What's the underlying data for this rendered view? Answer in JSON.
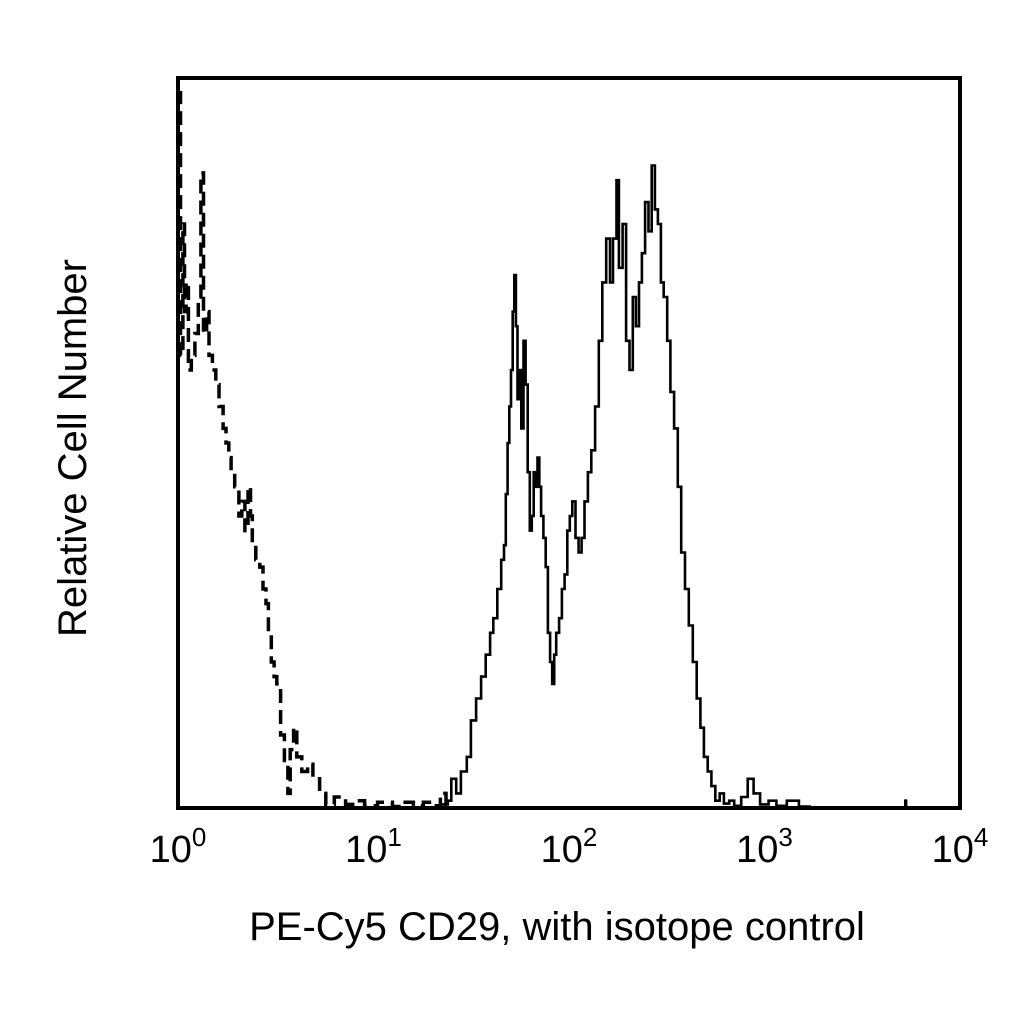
{
  "chart_data": {
    "type": "line",
    "xlabel": "PE-Cy5 CD29, with isotope control",
    "ylabel": "Relative Cell Number",
    "x_scale": "log",
    "xlim": [
      1,
      10000
    ],
    "ylim": [
      0,
      100
    ],
    "grid": false,
    "x_ticks": [
      {
        "base": "10",
        "exp": "0"
      },
      {
        "base": "10",
        "exp": "1"
      },
      {
        "base": "10",
        "exp": "2"
      },
      {
        "base": "10",
        "exp": "3"
      },
      {
        "base": "10",
        "exp": "4"
      }
    ],
    "series": [
      {
        "style": "dashed",
        "color": "#000000",
        "points": [
          [
            1.0,
            98
          ],
          [
            1.03,
            62
          ],
          [
            1.06,
            80
          ],
          [
            1.08,
            68
          ],
          [
            1.1,
            72
          ],
          [
            1.13,
            60
          ],
          [
            1.17,
            62
          ],
          [
            1.22,
            65
          ],
          [
            1.27,
            70
          ],
          [
            1.31,
            87
          ],
          [
            1.35,
            65
          ],
          [
            1.4,
            68
          ],
          [
            1.44,
            62
          ],
          [
            1.5,
            60
          ],
          [
            1.56,
            58
          ],
          [
            1.62,
            55
          ],
          [
            1.7,
            52
          ],
          [
            1.76,
            50
          ],
          [
            1.82,
            48
          ],
          [
            1.87,
            46
          ],
          [
            1.95,
            44
          ],
          [
            2.05,
            40
          ],
          [
            2.12,
            42
          ],
          [
            2.2,
            38
          ],
          [
            2.28,
            44
          ],
          [
            2.35,
            40
          ],
          [
            2.4,
            36
          ],
          [
            2.5,
            34
          ],
          [
            2.62,
            33
          ],
          [
            2.72,
            30
          ],
          [
            2.82,
            28
          ],
          [
            2.9,
            24
          ],
          [
            3.0,
            20
          ],
          [
            3.1,
            18
          ],
          [
            3.2,
            17
          ],
          [
            3.35,
            10
          ],
          [
            3.5,
            6
          ],
          [
            3.65,
            2
          ],
          [
            3.75,
            8
          ],
          [
            3.9,
            11
          ],
          [
            4.05,
            7
          ],
          [
            4.3,
            5
          ],
          [
            4.6,
            6
          ],
          [
            4.9,
            4
          ],
          [
            5.3,
            2
          ],
          [
            5.7,
            0.5
          ],
          [
            6.3,
            1.5
          ],
          [
            7.2,
            0.5
          ],
          [
            8.0,
            1
          ],
          [
            9.0,
            0.3
          ],
          [
            10.5,
            0.8
          ],
          [
            12.5,
            0.2
          ],
          [
            14.0,
            0.8
          ],
          [
            16.0,
            0.3
          ],
          [
            18.0,
            0.8
          ],
          [
            20.0,
            0.3
          ],
          [
            22.0,
            2
          ],
          [
            23.5,
            0.5
          ],
          [
            24.5,
            0.2
          ]
        ]
      },
      {
        "style": "solid",
        "color": "#000000",
        "points": [
          [
            22.0,
            0.5
          ],
          [
            24.0,
            1
          ],
          [
            25.0,
            4
          ],
          [
            26.5,
            2
          ],
          [
            28.0,
            5
          ],
          [
            30.0,
            7
          ],
          [
            31.5,
            12
          ],
          [
            33.5,
            15
          ],
          [
            35.5,
            18
          ],
          [
            37.5,
            21
          ],
          [
            39.5,
            24
          ],
          [
            41.0,
            26
          ],
          [
            43.0,
            30
          ],
          [
            45.0,
            34
          ],
          [
            46.5,
            36
          ],
          [
            47.5,
            43
          ],
          [
            48.5,
            50
          ],
          [
            49.5,
            55
          ],
          [
            50.5,
            60
          ],
          [
            51.5,
            68
          ],
          [
            52.5,
            73
          ],
          [
            53.5,
            66
          ],
          [
            54.5,
            56
          ],
          [
            55.5,
            60
          ],
          [
            57.0,
            52
          ],
          [
            58.5,
            64
          ],
          [
            60.0,
            58
          ],
          [
            61.5,
            46
          ],
          [
            63.0,
            38
          ],
          [
            64.5,
            40
          ],
          [
            66.0,
            46
          ],
          [
            67.5,
            44
          ],
          [
            69.0,
            48
          ],
          [
            70.5,
            44
          ],
          [
            72.0,
            40
          ],
          [
            74.0,
            37
          ],
          [
            76.0,
            33
          ],
          [
            78.0,
            24
          ],
          [
            80.0,
            20
          ],
          [
            82.0,
            17
          ],
          [
            84.0,
            21
          ],
          [
            86.0,
            24
          ],
          [
            89.0,
            26
          ],
          [
            92.0,
            30
          ],
          [
            95.0,
            32
          ],
          [
            98.0,
            38
          ],
          [
            101.0,
            40
          ],
          [
            104.0,
            42
          ],
          [
            108.0,
            37
          ],
          [
            112.0,
            35
          ],
          [
            116.0,
            37
          ],
          [
            120.0,
            42
          ],
          [
            125.0,
            46
          ],
          [
            130.0,
            49
          ],
          [
            136.0,
            55
          ],
          [
            142.0,
            64
          ],
          [
            148.0,
            72
          ],
          [
            155.0,
            78
          ],
          [
            162.0,
            72
          ],
          [
            168.0,
            78
          ],
          [
            175.0,
            86
          ],
          [
            180.0,
            74
          ],
          [
            188.0,
            80
          ],
          [
            196.0,
            64
          ],
          [
            204.0,
            60
          ],
          [
            212.0,
            70
          ],
          [
            220.0,
            66
          ],
          [
            228.0,
            72
          ],
          [
            236.0,
            76
          ],
          [
            245.0,
            83
          ],
          [
            255.0,
            79
          ],
          [
            265.0,
            88
          ],
          [
            275.0,
            82
          ],
          [
            285.0,
            80
          ],
          [
            295.0,
            72
          ],
          [
            305.0,
            70
          ],
          [
            318.0,
            64
          ],
          [
            330.0,
            57
          ],
          [
            345.0,
            52
          ],
          [
            360.0,
            44
          ],
          [
            375.0,
            35
          ],
          [
            392.0,
            30
          ],
          [
            410.0,
            25
          ],
          [
            430.0,
            20
          ],
          [
            450.0,
            15
          ],
          [
            470.0,
            11
          ],
          [
            490.0,
            7
          ],
          [
            512.0,
            5
          ],
          [
            535.0,
            3
          ],
          [
            560.0,
            1
          ],
          [
            590.0,
            2
          ],
          [
            620.0,
            0.6
          ],
          [
            660.0,
            1
          ],
          [
            700.0,
            0.3
          ],
          [
            760.0,
            1.5
          ],
          [
            820.0,
            4
          ],
          [
            880.0,
            2
          ],
          [
            950.0,
            0.5
          ],
          [
            1050.0,
            1
          ],
          [
            1150.0,
            0.3
          ],
          [
            1300.0,
            1
          ],
          [
            1500.0,
            0.2
          ],
          [
            1700.0,
            0
          ],
          [
            5200.0,
            0
          ],
          [
            5250.0,
            1
          ],
          [
            5300.0,
            0
          ],
          [
            10000.0,
            0
          ]
        ]
      }
    ]
  }
}
